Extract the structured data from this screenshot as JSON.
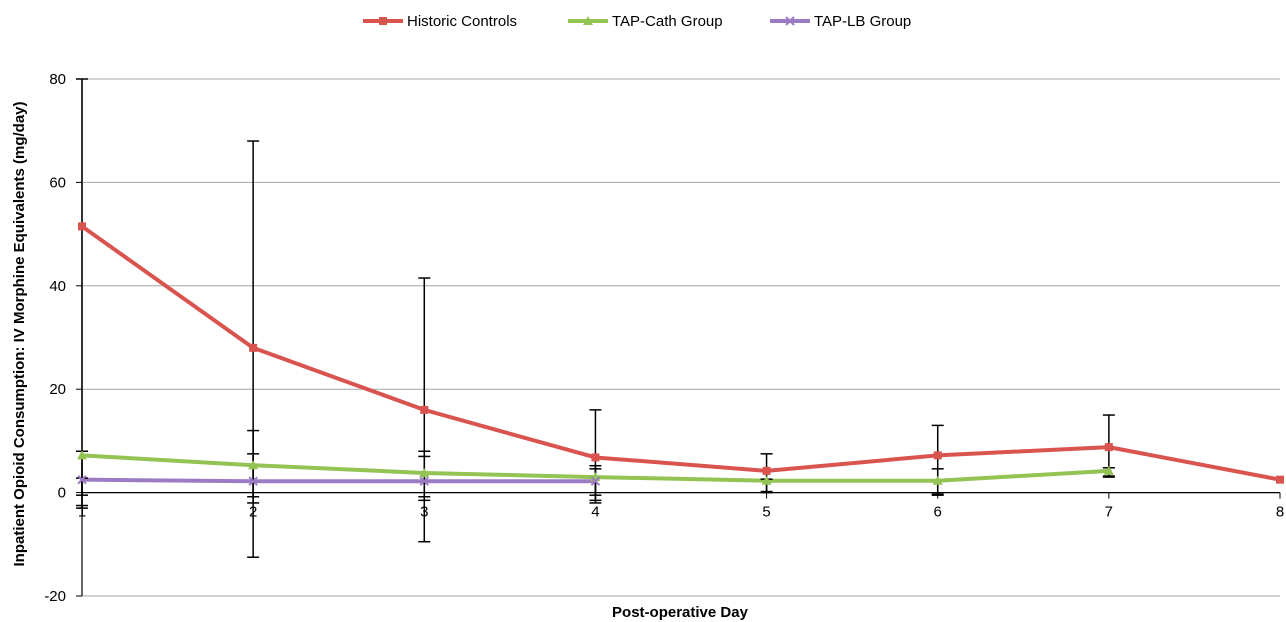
{
  "chart_data": {
    "type": "line",
    "title": "",
    "xlabel": "Post-operative Day",
    "ylabel": "Inpatient Opioid Consumption: IV Morphine Equivalents (mg/day)",
    "x": [
      1,
      2,
      3,
      4,
      5,
      6,
      7,
      8
    ],
    "xlim": [
      1,
      8
    ],
    "ylim": [
      -20,
      80
    ],
    "yticks": [
      -20,
      0,
      20,
      40,
      60,
      80
    ],
    "grid": "horizontal",
    "legend": "top",
    "series": [
      {
        "name": "Historic Controls",
        "color": "#d9534f",
        "marker": "square",
        "x": [
          1,
          2,
          3,
          4,
          5,
          6,
          7,
          8
        ],
        "values": [
          51.5,
          28,
          16,
          6.8,
          4.2,
          7.2,
          8.8,
          2.5
        ],
        "error_low": [
          -2.5,
          -12.5,
          -9.5,
          -2,
          0.2,
          -0.5,
          3.2,
          null
        ],
        "error_high": [
          80,
          68,
          41.5,
          16,
          7.5,
          13,
          15,
          null
        ]
      },
      {
        "name": "TAP-Cath Group",
        "color": "#92c353",
        "marker": "triangle",
        "x": [
          1,
          2,
          3,
          4,
          5,
          6,
          7
        ],
        "values": [
          7.2,
          5.3,
          3.8,
          3,
          2.3,
          2.3,
          4.2
        ],
        "error_low": [
          -3,
          -2,
          -1.5,
          -0.5,
          0,
          -0.3,
          3
        ],
        "error_high": [
          8,
          12,
          8,
          4.6,
          2.6,
          4.6,
          4.8
        ]
      },
      {
        "name": "TAP-LB Group",
        "color": "#9b7cc4",
        "marker": "cross",
        "x": [
          1,
          2,
          3,
          4
        ],
        "values": [
          2.5,
          2.2,
          2.2,
          2.2
        ],
        "error_low": [
          -0.5,
          -0.8,
          -0.8,
          -1.5
        ],
        "error_high": [
          2.8,
          7.5,
          7,
          5.2
        ]
      }
    ]
  }
}
